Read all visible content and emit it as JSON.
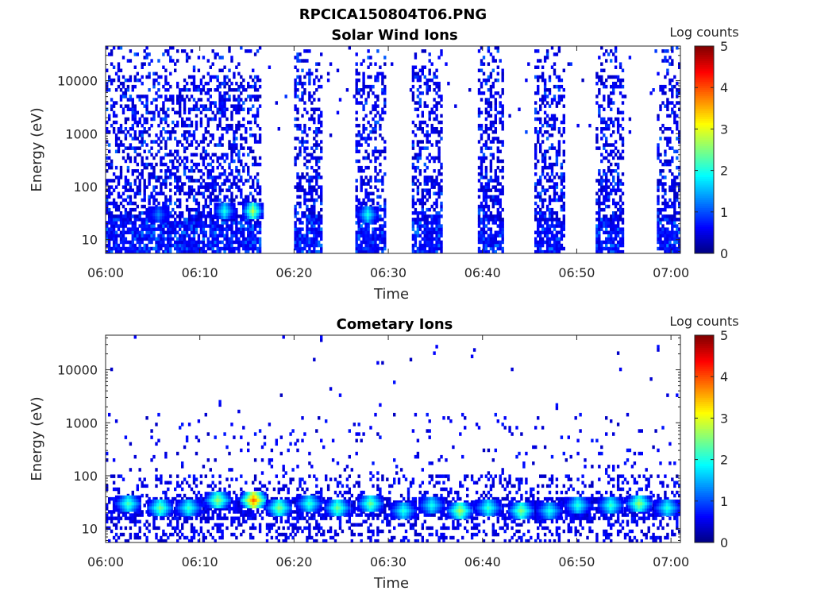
{
  "figure": {
    "filename": "RPCICA150804T06.PNG"
  },
  "chart_data": [
    {
      "type": "heatmap",
      "title": "Solar Wind Ions",
      "xlabel": "Time",
      "ylabel": "Energy (eV)",
      "x_ticks": [
        "06:00",
        "06:10",
        "06:20",
        "06:30",
        "06:40",
        "06:50",
        "07:00"
      ],
      "x_range": [
        "06:00",
        "07:01"
      ],
      "y_scale": "log",
      "y_ticks": [
        "10",
        "100",
        "1000",
        "10000"
      ],
      "y_range": [
        5.5,
        45000
      ],
      "colorbar": {
        "label": "Log counts",
        "range": [
          0,
          5
        ],
        "ticks": [
          "0",
          "1",
          "2",
          "3",
          "4",
          "5"
        ],
        "colormap": "jet"
      },
      "active_time_blocks_minutes": [
        [
          0,
          16.3
        ],
        [
          19.8,
          22.8
        ],
        [
          26.5,
          29.5
        ],
        [
          32.5,
          35.5
        ],
        [
          39.5,
          42.0
        ],
        [
          45.5,
          48.5
        ],
        [
          52.0,
          54.8
        ],
        [
          58.5,
          61.0
        ]
      ],
      "hot_spots": [
        {
          "time_min": 15.5,
          "energy_eV": 35,
          "log_counts": 2.8
        },
        {
          "time_min": 12.5,
          "energy_eV": 35,
          "log_counts": 2.0
        },
        {
          "time_min": 27.7,
          "energy_eV": 30,
          "log_counts": 2.0
        },
        {
          "time_min": 5.5,
          "energy_eV": 30,
          "log_counts": 1.3
        }
      ]
    },
    {
      "type": "heatmap",
      "title": "Cometary Ions",
      "xlabel": "Time",
      "ylabel": "Energy (eV)",
      "x_ticks": [
        "06:00",
        "06:10",
        "06:20",
        "06:30",
        "06:40",
        "06:50",
        "07:00"
      ],
      "x_range": [
        "06:00",
        "07:01"
      ],
      "y_scale": "log",
      "y_ticks": [
        "10",
        "100",
        "1000",
        "10000"
      ],
      "y_range": [
        5.5,
        45000
      ],
      "colorbar": {
        "label": "Log counts",
        "range": [
          0,
          5
        ],
        "ticks": [
          "0",
          "1",
          "2",
          "3",
          "4",
          "5"
        ],
        "colormap": "jet"
      },
      "band_energy_eV": [
        15,
        40
      ],
      "hot_spots": [
        {
          "time_min": 2.3,
          "energy_eV": 30,
          "log_counts": 2.3
        },
        {
          "time_min": 5.7,
          "energy_eV": 25,
          "log_counts": 2.5
        },
        {
          "time_min": 8.7,
          "energy_eV": 25,
          "log_counts": 2.2
        },
        {
          "time_min": 11.8,
          "energy_eV": 35,
          "log_counts": 2.7
        },
        {
          "time_min": 15.6,
          "energy_eV": 35,
          "log_counts": 4.0
        },
        {
          "time_min": 18.3,
          "energy_eV": 25,
          "log_counts": 2.6
        },
        {
          "time_min": 21.5,
          "energy_eV": 30,
          "log_counts": 2.2
        },
        {
          "time_min": 24.5,
          "energy_eV": 25,
          "log_counts": 2.5
        },
        {
          "time_min": 28.0,
          "energy_eV": 30,
          "log_counts": 2.5
        },
        {
          "time_min": 31.5,
          "energy_eV": 22,
          "log_counts": 2.1
        },
        {
          "time_min": 34.5,
          "energy_eV": 28,
          "log_counts": 2.0
        },
        {
          "time_min": 37.5,
          "energy_eV": 22,
          "log_counts": 2.8
        },
        {
          "time_min": 40.5,
          "energy_eV": 25,
          "log_counts": 2.2
        },
        {
          "time_min": 44.0,
          "energy_eV": 22,
          "log_counts": 2.6
        },
        {
          "time_min": 47.0,
          "energy_eV": 22,
          "log_counts": 2.0
        },
        {
          "time_min": 50.0,
          "energy_eV": 28,
          "log_counts": 2.1
        },
        {
          "time_min": 53.5,
          "energy_eV": 28,
          "log_counts": 2.2
        },
        {
          "time_min": 56.5,
          "energy_eV": 30,
          "log_counts": 2.7
        },
        {
          "time_min": 59.5,
          "energy_eV": 25,
          "log_counts": 2.1
        }
      ]
    }
  ]
}
